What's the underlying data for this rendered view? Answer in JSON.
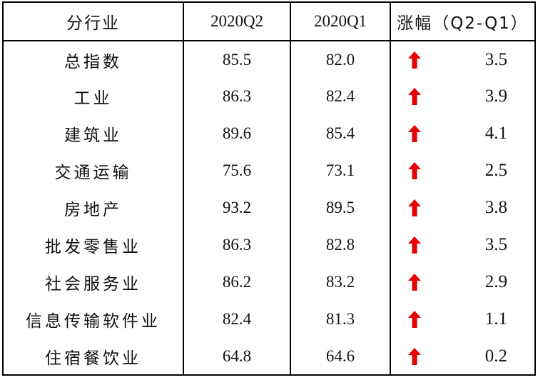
{
  "table": {
    "headers": {
      "industry": "分行业",
      "q2": "2020Q2",
      "q1": "2020Q1",
      "change": "涨幅（Q2-Q1）"
    },
    "rows": [
      {
        "industry": "总指数",
        "q2": "85.5",
        "q1": "82.0",
        "trend": "up",
        "change": "3.5"
      },
      {
        "industry": "工业",
        "q2": "86.3",
        "q1": "82.4",
        "trend": "up",
        "change": "3.9"
      },
      {
        "industry": "建筑业",
        "q2": "89.6",
        "q1": "85.4",
        "trend": "up",
        "change": "4.1"
      },
      {
        "industry": "交通运输",
        "q2": "75.6",
        "q1": "73.1",
        "trend": "up",
        "change": "2.5"
      },
      {
        "industry": "房地产",
        "q2": "93.2",
        "q1": "89.5",
        "trend": "up",
        "change": "3.8"
      },
      {
        "industry": "批发零售业",
        "q2": "86.3",
        "q1": "82.8",
        "trend": "up",
        "change": "3.5"
      },
      {
        "industry": "社会服务业",
        "q2": "86.2",
        "q1": "83.2",
        "trend": "up",
        "change": "2.9"
      },
      {
        "industry": "信息传输软件业",
        "q2": "82.4",
        "q1": "81.3",
        "trend": "up",
        "change": "1.1"
      },
      {
        "industry": "住宿餐饮业",
        "q2": "64.8",
        "q1": "64.6",
        "trend": "up",
        "change": "0.2"
      }
    ]
  },
  "colors": {
    "arrow_up": "#e60000",
    "border": "#000000",
    "text": "#111111"
  },
  "icons": {
    "trend_up": "red-up-arrow-icon"
  }
}
